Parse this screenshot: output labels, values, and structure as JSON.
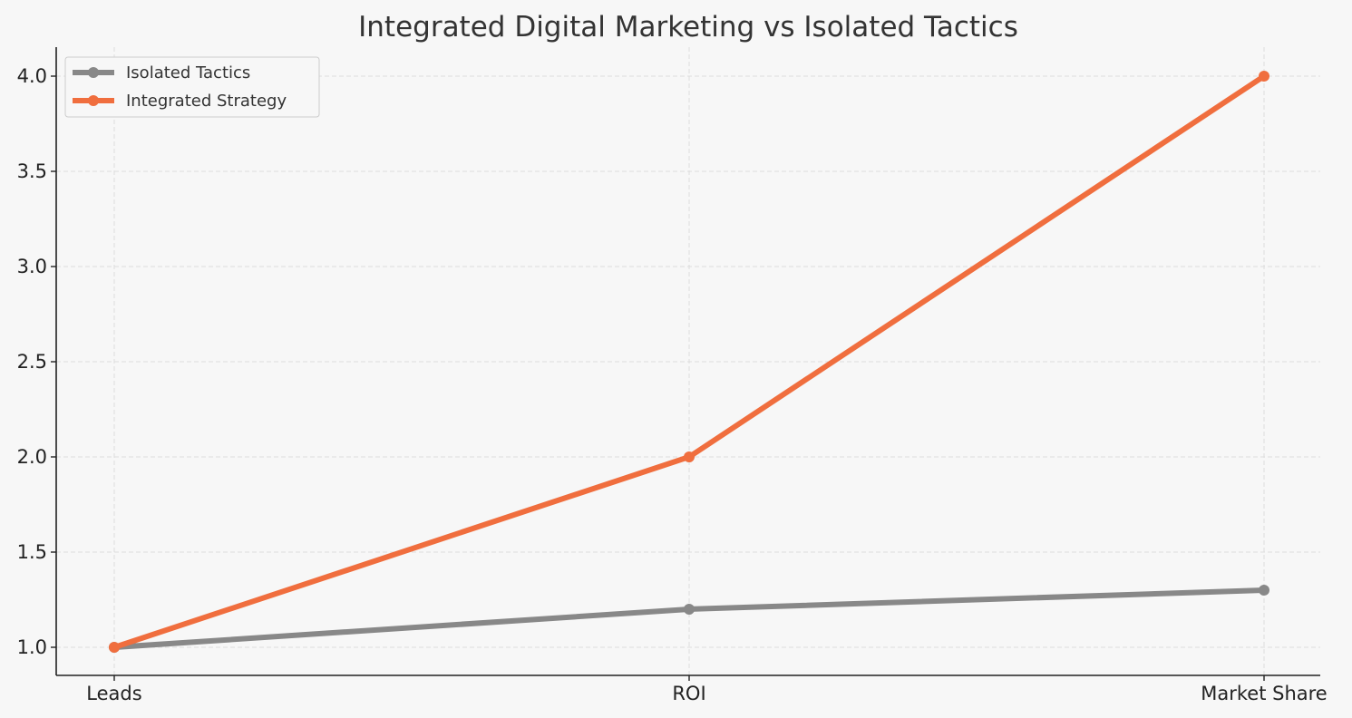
{
  "chart_data": {
    "type": "line",
    "title": "Integrated Digital Marketing vs Isolated Tactics",
    "xlabel": "",
    "ylabel": "",
    "categories": [
      "Leads",
      "ROI",
      "Market Share"
    ],
    "ylim": [
      0.85,
      4.15
    ],
    "yticks": [
      "1.0",
      "1.5",
      "2.0",
      "2.5",
      "3.0",
      "3.5",
      "4.0"
    ],
    "grid": true,
    "legend_position": "top-left",
    "series": [
      {
        "name": "Isolated Tactics",
        "values": [
          1.0,
          1.2,
          1.3
        ],
        "color": "#888888"
      },
      {
        "name": "Integrated Strategy",
        "values": [
          1.0,
          2.0,
          4.0
        ],
        "color": "#f06e3e"
      }
    ]
  }
}
